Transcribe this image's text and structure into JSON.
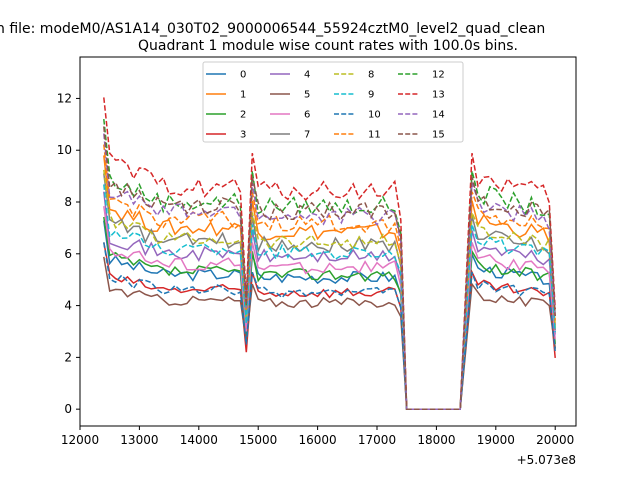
{
  "chart_data": {
    "type": "line",
    "suptitle": "n file: modeM0/AS1A14_030T02_9000006544_55924cztM0_level2_quad_clean",
    "title": "Quadrant 1 module wise count rates with 100.0s bins.",
    "xlabel": "",
    "ylabel": "",
    "x_offset_label": "+5.073e8",
    "x_ticks": [
      12000,
      13000,
      14000,
      15000,
      16000,
      17000,
      18000,
      19000,
      20000
    ],
    "y_ticks": [
      0,
      2,
      4,
      6,
      8,
      10,
      12
    ],
    "x_tick_labels": [
      "12000",
      "13000",
      "14000",
      "15000",
      "16000",
      "17000",
      "18000",
      "19000",
      "20000"
    ],
    "y_tick_labels": [
      "0",
      "2",
      "4",
      "6",
      "8",
      "10",
      "12"
    ],
    "xlim": [
      12000,
      20350
    ],
    "ylim": [
      -0.65,
      13.6
    ],
    "legend_position": "top-center",
    "shape": {
      "x_start": 12400,
      "x_step": 100,
      "segment1_end": 14700,
      "dip_x": 14800,
      "segment2_start": 14900,
      "segment2_end": 17300,
      "step_x": 17400,
      "gap_start": 17500,
      "gap_end": 18400,
      "segment3_start": 18600,
      "segment3_end": 19900,
      "end_x": 20000,
      "start_factor": 1.4,
      "post_dip_factor": 1.15,
      "segment3_first_factor": 1.15
    },
    "series": [
      {
        "name": "0",
        "color": "#1f77b4",
        "dash": false,
        "level": 5.2,
        "dip": 2.6
      },
      {
        "name": "1",
        "color": "#ff7f0e",
        "dash": false,
        "level": 7.0,
        "dip": 3.6
      },
      {
        "name": "2",
        "color": "#2ca02c",
        "dash": false,
        "level": 5.3,
        "dip": 2.8
      },
      {
        "name": "3",
        "color": "#d62728",
        "dash": false,
        "level": 4.6,
        "dip": 2.2
      },
      {
        "name": "4",
        "color": "#9467bd",
        "dash": false,
        "level": 6.0,
        "dip": 3.2
      },
      {
        "name": "5",
        "color": "#8c564b",
        "dash": false,
        "level": 4.2,
        "dip": 2.6
      },
      {
        "name": "6",
        "color": "#e377c2",
        "dash": false,
        "level": 5.6,
        "dip": 3.0
      },
      {
        "name": "7",
        "color": "#7f7f7f",
        "dash": false,
        "level": 6.5,
        "dip": 3.4
      },
      {
        "name": "8",
        "color": "#bcbd22",
        "dash": true,
        "level": 6.6,
        "dip": 3.5
      },
      {
        "name": "9",
        "color": "#17becf",
        "dash": true,
        "level": 6.2,
        "dip": 3.3
      },
      {
        "name": "10",
        "color": "#1f77b4",
        "dash": true,
        "level": 4.6,
        "dip": 2.5
      },
      {
        "name": "11",
        "color": "#ff7f0e",
        "dash": true,
        "level": 7.3,
        "dip": 3.8
      },
      {
        "name": "12",
        "color": "#2ca02c",
        "dash": true,
        "level": 8.0,
        "dip": 4.0
      },
      {
        "name": "13",
        "color": "#d62728",
        "dash": true,
        "level": 8.6,
        "dip": 4.3
      },
      {
        "name": "14",
        "color": "#9467bd",
        "dash": true,
        "level": 7.6,
        "dip": 3.9
      },
      {
        "name": "15",
        "color": "#8c564b",
        "dash": true,
        "level": 7.8,
        "dip": 4.0
      }
    ]
  }
}
